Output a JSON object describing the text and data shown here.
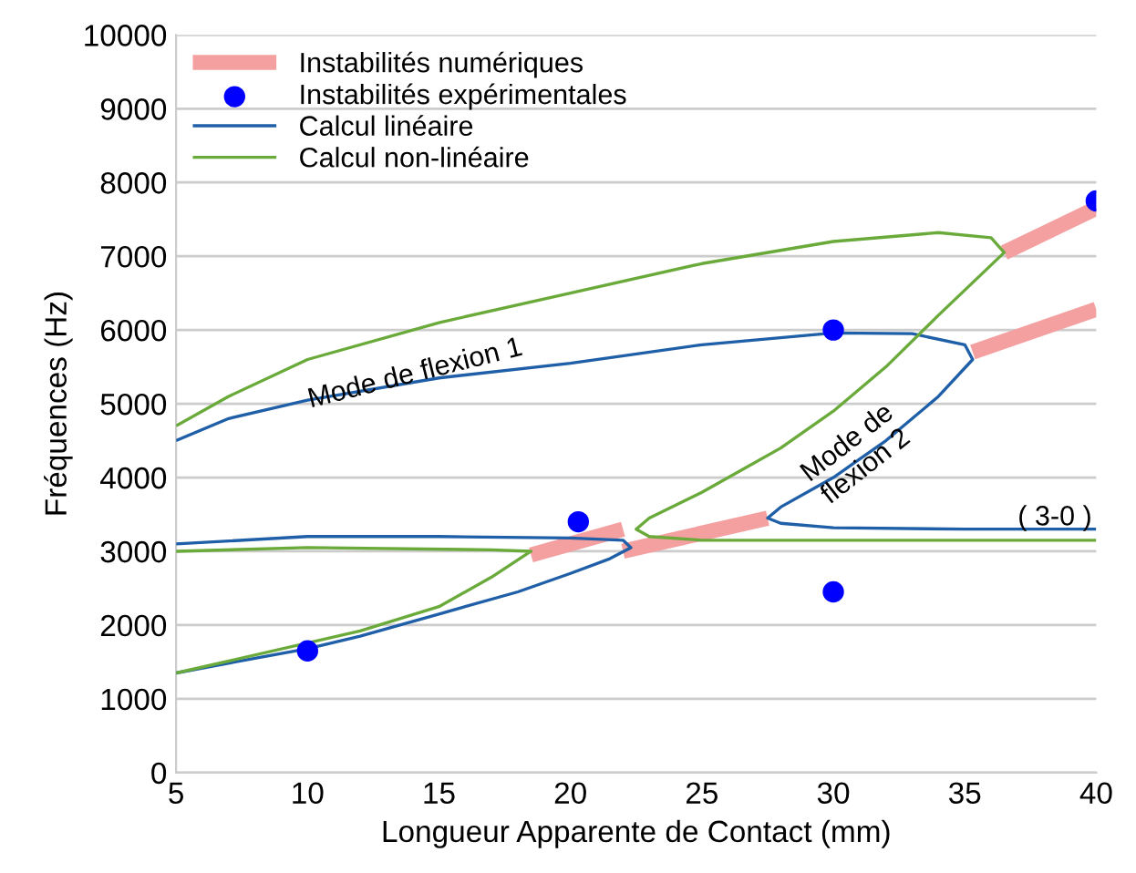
{
  "chart_data": {
    "type": "line",
    "xlabel": "Longueur Apparente de Contact (mm)",
    "ylabel": "Fréquences (Hz)",
    "xlim": [
      5,
      40
    ],
    "xticks": [
      5,
      10,
      15,
      20,
      25,
      30,
      35,
      40
    ],
    "ylim": [
      0,
      10000
    ],
    "yticks": [
      0,
      1000,
      2000,
      3000,
      4000,
      5000,
      6000,
      7000,
      8000,
      9000,
      10000
    ],
    "grid": "y",
    "legend": "top left",
    "line_style": "solid",
    "series": [
      {
        "name": "Instabilités numériques",
        "color": "#f4a0a0",
        "x": [
          18.5,
          22
        ],
        "values": [
          2950,
          3300
        ]
      },
      {
        "color": "#f4a0a0",
        "x": [
          22,
          27.5
        ],
        "values": [
          3000,
          3450
        ]
      },
      {
        "color": "#f4a0a0",
        "x": [
          35.3,
          40
        ],
        "values": [
          5700,
          6280
        ]
      },
      {
        "color": "#f4a0a0",
        "x": [
          36.5,
          40
        ],
        "values": [
          7050,
          7650
        ]
      },
      {
        "name": "Instabilités expérimentales",
        "type": "scatter",
        "color": "#0000ff",
        "marker": "circle",
        "x": [
          10,
          20.3,
          30,
          30,
          40
        ],
        "values": [
          1650,
          3400,
          6000,
          2450,
          7750
        ]
      },
      {
        "name": "Calcul linéaire",
        "color": "#1f5fa8",
        "x": [
          5,
          8,
          10,
          12,
          15,
          18,
          20,
          21.5,
          22.3,
          22,
          20,
          15,
          10,
          5
        ],
        "values": [
          1350,
          1550,
          1680,
          1850,
          2150,
          2450,
          2700,
          2900,
          3050,
          3150,
          3180,
          3200,
          3200,
          3100
        ]
      },
      {
        "color": "#1f5fa8",
        "x": [
          40,
          35,
          30,
          28,
          27.5,
          28,
          30,
          32,
          34,
          35.3,
          35,
          33,
          30,
          25,
          20,
          15,
          10,
          7,
          5
        ],
        "values": [
          3300,
          3300,
          3320,
          3380,
          3450,
          3600,
          4000,
          4500,
          5100,
          5600,
          5800,
          5950,
          5960,
          5800,
          5550,
          5350,
          5050,
          4800,
          4500
        ]
      },
      {
        "name": "Calcul non-linéaire",
        "color": "#6aaa3a",
        "x": [
          5,
          12,
          15,
          17,
          18.5,
          17,
          10,
          5
        ],
        "values": [
          1350,
          1920,
          2250,
          2650,
          3000,
          3020,
          3050,
          3000
        ]
      },
      {
        "color": "#6aaa3a",
        "x": [
          40,
          30,
          25,
          23,
          22.5,
          23,
          25,
          28,
          30,
          32,
          34,
          36.5,
          36,
          34,
          30,
          25,
          20,
          15,
          10,
          7,
          5
        ],
        "values": [
          3150,
          3150,
          3150,
          3200,
          3300,
          3450,
          3800,
          4400,
          4900,
          5500,
          6200,
          7050,
          7250,
          7320,
          7200,
          6900,
          6500,
          6100,
          5600,
          5100,
          4700
        ]
      }
    ],
    "annotations": [
      "Mode de flexion 1",
      "Mode de\nflexion 2",
      "( 3-0 )"
    ]
  }
}
